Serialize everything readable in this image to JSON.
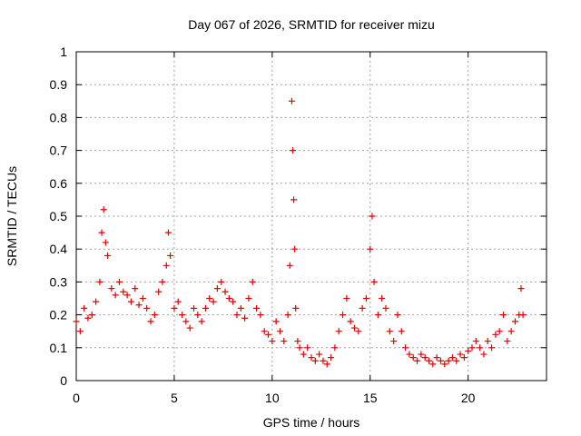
{
  "chart_data": {
    "type": "scatter",
    "title": "Day 067 of 2026, SRMTID for receiver mizu",
    "xlabel": "GPS time / hours",
    "ylabel": "SRMTID / TECUs",
    "xlim": [
      0,
      24
    ],
    "ylim": [
      0,
      1
    ],
    "xticks": [
      0,
      5,
      10,
      15,
      20
    ],
    "xtick_labels": [
      "0",
      "5",
      "10",
      "15",
      "20"
    ],
    "yticks": [
      0,
      0.1,
      0.2,
      0.3,
      0.4,
      0.5,
      0.6,
      0.7,
      0.8,
      0.9,
      1
    ],
    "ytick_labels": [
      "0",
      "0.1",
      "0.2",
      "0.3",
      "0.4",
      "0.5",
      "0.6",
      "0.7",
      "0.8",
      "0.9",
      "1"
    ],
    "grid": true,
    "marker": "+",
    "series": [
      {
        "name": "SRMTID",
        "color": "#e00000",
        "x": [
          0.0,
          0.2,
          0.4,
          0.6,
          0.8,
          1.0,
          1.2,
          1.3,
          1.4,
          1.5,
          1.6,
          1.8,
          2.0,
          2.2,
          2.4,
          2.6,
          2.8,
          3.0,
          3.2,
          3.4,
          3.6,
          3.8,
          4.0,
          4.2,
          4.4,
          4.6,
          4.7,
          4.8,
          5.0,
          5.2,
          5.4,
          5.6,
          5.8,
          6.0,
          6.2,
          6.4,
          6.6,
          6.8,
          7.0,
          7.2,
          7.4,
          7.6,
          7.8,
          8.0,
          8.2,
          8.4,
          8.6,
          8.8,
          9.0,
          9.2,
          9.4,
          9.6,
          9.8,
          10.0,
          10.2,
          10.4,
          10.6,
          10.8,
          10.9,
          11.0,
          11.05,
          11.1,
          11.15,
          11.2,
          11.3,
          11.4,
          11.6,
          11.8,
          12.0,
          12.2,
          12.4,
          12.6,
          12.8,
          13.0,
          13.2,
          13.4,
          13.6,
          13.8,
          14.0,
          14.2,
          14.4,
          14.6,
          14.8,
          15.0,
          15.1,
          15.2,
          15.4,
          15.6,
          15.8,
          16.0,
          16.2,
          16.4,
          16.6,
          16.8,
          17.0,
          17.2,
          17.4,
          17.6,
          17.8,
          18.0,
          18.2,
          18.4,
          18.6,
          18.8,
          19.0,
          19.2,
          19.4,
          19.6,
          19.8,
          20.0,
          20.2,
          20.4,
          20.6,
          20.8,
          21.0,
          21.2,
          21.4,
          21.6,
          21.8,
          22.0,
          22.2,
          22.4,
          22.6,
          22.7,
          22.8
        ],
        "y": [
          0.18,
          0.15,
          0.22,
          0.19,
          0.2,
          0.24,
          0.3,
          0.45,
          0.52,
          0.42,
          0.38,
          0.28,
          0.26,
          0.3,
          0.27,
          0.26,
          0.24,
          0.28,
          0.23,
          0.25,
          0.22,
          0.18,
          0.2,
          0.27,
          0.3,
          0.35,
          0.45,
          0.38,
          0.22,
          0.24,
          0.2,
          0.18,
          0.16,
          0.22,
          0.2,
          0.18,
          0.22,
          0.25,
          0.24,
          0.28,
          0.3,
          0.27,
          0.25,
          0.24,
          0.2,
          0.22,
          0.19,
          0.25,
          0.3,
          0.22,
          0.2,
          0.15,
          0.14,
          0.12,
          0.18,
          0.15,
          0.12,
          0.2,
          0.35,
          0.85,
          0.7,
          0.55,
          0.4,
          0.22,
          0.12,
          0.1,
          0.08,
          0.1,
          0.07,
          0.06,
          0.08,
          0.06,
          0.05,
          0.07,
          0.1,
          0.15,
          0.2,
          0.25,
          0.18,
          0.16,
          0.15,
          0.22,
          0.25,
          0.4,
          0.5,
          0.3,
          0.2,
          0.25,
          0.22,
          0.15,
          0.12,
          0.2,
          0.15,
          0.1,
          0.08,
          0.07,
          0.06,
          0.08,
          0.07,
          0.06,
          0.05,
          0.07,
          0.06,
          0.05,
          0.06,
          0.07,
          0.06,
          0.08,
          0.07,
          0.09,
          0.1,
          0.12,
          0.1,
          0.08,
          0.12,
          0.1,
          0.14,
          0.15,
          0.2,
          0.12,
          0.15,
          0.18,
          0.2,
          0.28,
          0.2
        ]
      }
    ],
    "annotations": []
  }
}
